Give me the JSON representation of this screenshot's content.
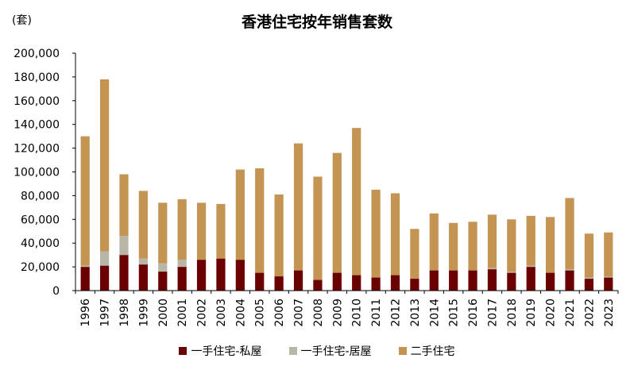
{
  "chart_data": {
    "type": "bar",
    "stacked": true,
    "title": "香港住宅按年销售套数",
    "unit": "(套)",
    "xlabel": "",
    "ylabel": "",
    "ylim": [
      0,
      200000
    ],
    "yticks": [
      "0",
      "20,000",
      "40,000",
      "60,000",
      "80,000",
      "100,000",
      "120,000",
      "140,000",
      "160,000",
      "180,000",
      "200,000"
    ],
    "grid": false,
    "legend_position": "bottom",
    "categories": [
      "1996",
      "1997",
      "1998",
      "1999",
      "2000",
      "2001",
      "2002",
      "2003",
      "2004",
      "2005",
      "2006",
      "2007",
      "2008",
      "2009",
      "2010",
      "2011",
      "2012",
      "2013",
      "2014",
      "2015",
      "2016",
      "2017",
      "2018",
      "2019",
      "2020",
      "2021",
      "2022",
      "2023"
    ],
    "series": [
      {
        "name": "一手住宅-私屋",
        "color": "#6b0000",
        "values": [
          20000,
          21000,
          30000,
          22000,
          16000,
          20000,
          26000,
          27000,
          26000,
          15000,
          12000,
          17000,
          9000,
          15000,
          13000,
          11000,
          13000,
          10000,
          17000,
          17000,
          17000,
          18000,
          15000,
          20000,
          15000,
          17000,
          10000,
          11000
        ]
      },
      {
        "name": "一手住宅-居屋",
        "color": "#b7b6a7",
        "values": [
          1000,
          12000,
          16000,
          5000,
          7000,
          6000,
          0,
          0,
          0,
          0,
          0,
          0,
          0,
          0,
          0,
          0,
          0,
          0,
          0,
          0,
          0,
          1000,
          1000,
          1000,
          0,
          1000,
          1000,
          1000
        ]
      },
      {
        "name": "二手住宅",
        "color": "#c49452",
        "values": [
          109000,
          145000,
          52000,
          57000,
          51000,
          51000,
          48000,
          46000,
          76000,
          88000,
          69000,
          107000,
          87000,
          101000,
          124000,
          74000,
          69000,
          42000,
          48000,
          40000,
          41000,
          45000,
          44000,
          42000,
          47000,
          60000,
          37000,
          37000
        ]
      }
    ]
  }
}
